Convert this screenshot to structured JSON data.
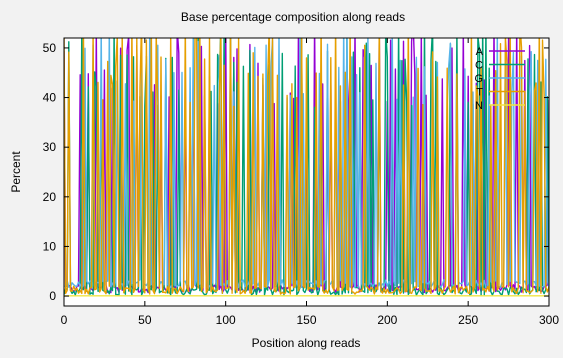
{
  "chart_data": {
    "type": "line",
    "title": "Base percentage composition along reads",
    "xlabel": "Position along reads",
    "ylabel": "Percent",
    "xlim": [
      0,
      300
    ],
    "ylim": [
      -2,
      52
    ],
    "xticks": [
      0,
      50,
      100,
      150,
      200,
      250,
      300
    ],
    "yticks": [
      0,
      10,
      20,
      30,
      40,
      50
    ],
    "grid": false,
    "legend_position": "top-right",
    "series": [
      {
        "name": "A",
        "color": "#9400d3",
        "baseline": 1.5,
        "spikeEvery": 5,
        "phase": 0
      },
      {
        "name": "C",
        "color": "#009e73",
        "baseline": 1.0,
        "spikeEvery": 4,
        "phase": 1
      },
      {
        "name": "G",
        "color": "#56b4e9",
        "baseline": 2.5,
        "spikeEvery": 5,
        "phase": 2
      },
      {
        "name": "T",
        "color": "#e69f00",
        "baseline": 1.2,
        "spikeEvery": 3,
        "phase": 0
      },
      {
        "name": "N",
        "color": "#f0e442",
        "baseline": 0.05,
        "spikeEvery": 0,
        "phase": 0
      }
    ]
  }
}
